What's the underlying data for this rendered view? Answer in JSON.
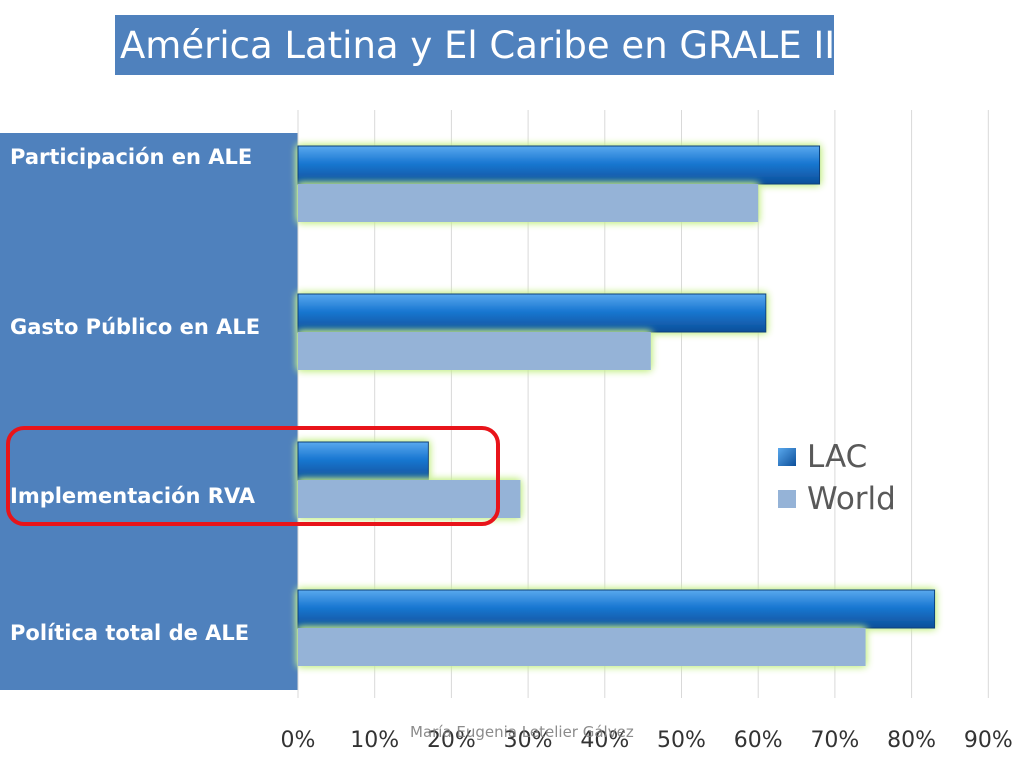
{
  "title": "América Latina y El Caribe en GRALE III",
  "footer": "María Eugenia Letelier Gálvez",
  "colors": {
    "lac": "#1874cd",
    "world": "#95b3d7",
    "panel": "#4f81bd",
    "highlight": "#e8141a",
    "glow": "#c6ef8c"
  },
  "chart_data": {
    "type": "bar",
    "orientation": "horizontal",
    "categories": [
      "Participación en ALE",
      "Gasto Público en ALE",
      "Implementación RVA",
      "Política total de ALE"
    ],
    "series": [
      {
        "name": "LAC",
        "values": [
          68,
          61,
          17,
          83
        ]
      },
      {
        "name": "World",
        "values": [
          60,
          46,
          29,
          74
        ]
      }
    ],
    "x_ticks": [
      "0%",
      "10%",
      "20%",
      "30%",
      "40%",
      "50%",
      "60%",
      "70%",
      "80%",
      "90%"
    ],
    "xlim": [
      0,
      90
    ],
    "unit": "%",
    "grid": true,
    "legend_position": "right",
    "highlighted_category": "Implementación RVA"
  }
}
